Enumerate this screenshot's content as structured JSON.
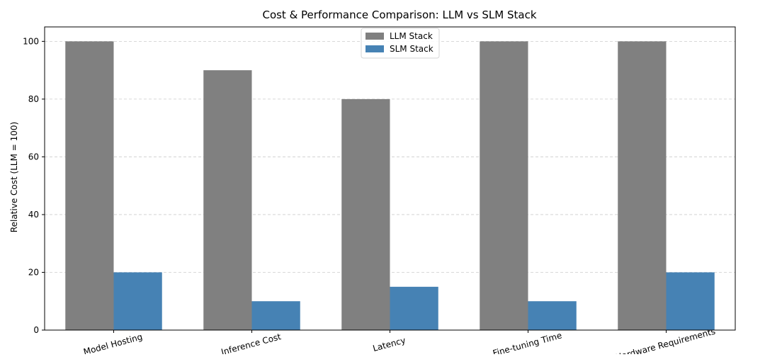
{
  "chart_data": {
    "type": "bar",
    "title": "Cost & Performance Comparison: LLM vs SLM Stack",
    "xlabel": "",
    "ylabel": "Relative Cost (LLM = 100)",
    "categories": [
      "Model Hosting",
      "Inference Cost",
      "Latency",
      "Fine-tuning Time",
      "Hardware Requirements"
    ],
    "series": [
      {
        "name": "LLM Stack",
        "color": "#808080",
        "values": [
          100,
          90,
          80,
          100,
          100
        ]
      },
      {
        "name": "SLM Stack",
        "color": "#4682b4",
        "values": [
          20,
          10,
          15,
          10,
          20
        ]
      }
    ],
    "ylim": [
      0,
      105
    ],
    "yticks": [
      0,
      20,
      40,
      60,
      80,
      100
    ],
    "grid": "y-dashed",
    "legend": "top-center"
  }
}
